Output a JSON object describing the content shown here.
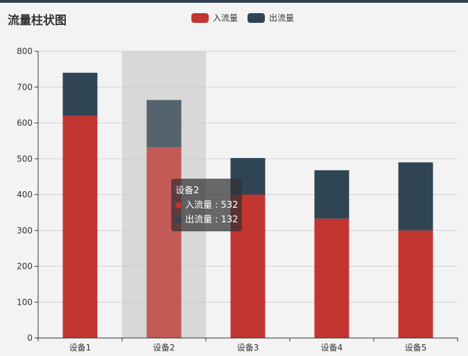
{
  "chart_data": {
    "type": "bar",
    "stacked": true,
    "title": "流量柱状图",
    "categories": [
      "设备1",
      "设备2",
      "设备3",
      "设备4",
      "设备5"
    ],
    "series": [
      {
        "name": "入流量",
        "color": "#c23531",
        "values": [
          620,
          532,
          400,
          333,
          300
        ]
      },
      {
        "name": "出流量",
        "color": "#2f4554",
        "values": [
          120,
          132,
          102,
          135,
          190
        ]
      }
    ],
    "yticks": [
      0,
      100,
      200,
      300,
      400,
      500,
      600,
      700,
      800
    ],
    "ylim": [
      0,
      800
    ],
    "grid": true,
    "legend": "top-center",
    "highlighted_category": "设备2"
  },
  "tooltip": {
    "title": "设备2",
    "rows": [
      {
        "label": "入流量 : 532",
        "color": "#c23531"
      },
      {
        "label": "出流量 : 132",
        "color": "#2f4554"
      }
    ]
  }
}
